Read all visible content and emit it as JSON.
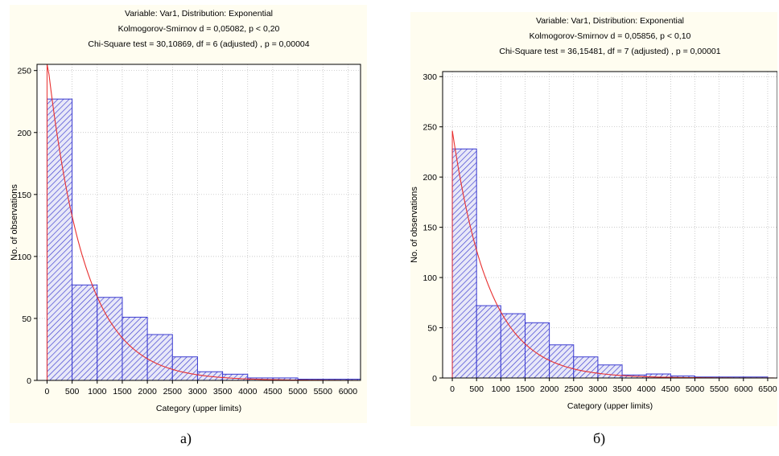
{
  "chart_data": [
    {
      "type": "histogram",
      "panel": "a",
      "title_lines": [
        "Variable: Var1, Distribution: Exponential",
        "Kolmogorov-Smirnov d = 0,05082, p < 0,20",
        "Chi-Square test = 30,10869, df = 6 (adjusted) , p = 0,00004"
      ],
      "xlabel": "Category (upper limits)",
      "ylabel": "No. of observations",
      "xlim": [
        -200,
        6250
      ],
      "ylim": [
        0,
        255
      ],
      "xticks": [
        0,
        500,
        1000,
        1500,
        2000,
        2500,
        3000,
        3500,
        4000,
        4500,
        5000,
        5500,
        6000
      ],
      "yticks": [
        0,
        50,
        100,
        150,
        200,
        250
      ],
      "bins": [
        {
          "from": 0,
          "to": 500,
          "value": 227
        },
        {
          "from": 500,
          "to": 1000,
          "value": 77
        },
        {
          "from": 1000,
          "to": 1500,
          "value": 67
        },
        {
          "from": 1500,
          "to": 2000,
          "value": 51
        },
        {
          "from": 2000,
          "to": 2500,
          "value": 37
        },
        {
          "from": 2500,
          "to": 3000,
          "value": 19
        },
        {
          "from": 3000,
          "to": 3500,
          "value": 7
        },
        {
          "from": 3500,
          "to": 4000,
          "value": 5
        },
        {
          "from": 4000,
          "to": 4500,
          "value": 2
        },
        {
          "from": 4500,
          "to": 5000,
          "value": 2
        },
        {
          "from": 5000,
          "to": 5500,
          "value": 1
        },
        {
          "from": 5500,
          "to": 6000,
          "value": 1
        },
        {
          "from": 6000,
          "to": 6250,
          "value": 1
        }
      ],
      "fit_curve": {
        "y0": 260,
        "decay_per_unit": 0.00135
      },
      "grid": true,
      "bar_color": "#3a3ad0",
      "curve_color": "#e83030",
      "caption": "а)"
    },
    {
      "type": "histogram",
      "panel": "б",
      "title_lines": [
        "Variable: Var1, Distribution: Exponential",
        "Kolmogorov-Smirnov d = 0,05856, p < 0,10",
        "Chi-Square test = 36,15481, df = 7 (adjusted) , p = 0,00001"
      ],
      "xlabel": "Category (upper limits)",
      "ylabel": "No. of observations",
      "xlim": [
        -200,
        6700
      ],
      "ylim": [
        0,
        305
      ],
      "xticks": [
        0,
        500,
        1000,
        1500,
        2000,
        2500,
        3000,
        3500,
        4000,
        4500,
        5000,
        5500,
        6000,
        6500
      ],
      "xtick_labels": [
        "0",
        "500",
        "1000",
        "1500",
        "2000",
        "2500",
        "3000",
        "3500",
        "4000",
        "4500",
        "5000",
        "5500",
        "6000",
        "6500"
      ],
      "yticks": [
        0,
        50,
        100,
        150,
        200,
        250,
        300
      ],
      "bins": [
        {
          "from": 0,
          "to": 500,
          "value": 228
        },
        {
          "from": 500,
          "to": 1000,
          "value": 72
        },
        {
          "from": 1000,
          "to": 1500,
          "value": 64
        },
        {
          "from": 1500,
          "to": 2000,
          "value": 55
        },
        {
          "from": 2000,
          "to": 2500,
          "value": 33
        },
        {
          "from": 2500,
          "to": 3000,
          "value": 21
        },
        {
          "from": 3000,
          "to": 3500,
          "value": 13
        },
        {
          "from": 3500,
          "to": 4000,
          "value": 3
        },
        {
          "from": 4000,
          "to": 4500,
          "value": 4
        },
        {
          "from": 4500,
          "to": 5000,
          "value": 2
        },
        {
          "from": 5000,
          "to": 5500,
          "value": 1
        },
        {
          "from": 5500,
          "to": 6000,
          "value": 1
        },
        {
          "from": 6000,
          "to": 6500,
          "value": 1
        }
      ],
      "fit_curve": {
        "y0": 246,
        "decay_per_unit": 0.00132
      },
      "grid": true,
      "bar_color": "#3a3ad0",
      "curve_color": "#e83030",
      "caption": "б)"
    }
  ],
  "captions": {
    "a": "а)",
    "b": "б)"
  }
}
